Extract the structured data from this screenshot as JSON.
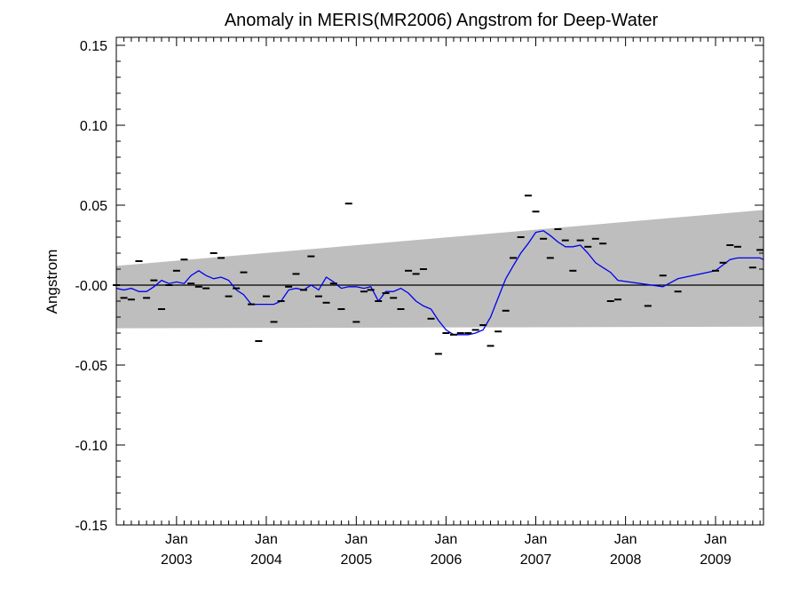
{
  "chart_data": {
    "type": "line",
    "title": "Anomaly in MERIS(MR2006) Angstrom for Deep-Water",
    "ylabel": "Angstrom",
    "xlabel": "",
    "ylim": [
      -0.15,
      0.155
    ],
    "xlim": [
      "2002-05-01",
      "2009-07-15"
    ],
    "y_ticks": [
      {
        "v": 0.15,
        "label": "0.15"
      },
      {
        "v": 0.1,
        "label": "0.10"
      },
      {
        "v": 0.05,
        "label": "0.05"
      },
      {
        "v": 0.0,
        "label": "-0.00"
      },
      {
        "v": -0.05,
        "label": "-0.05"
      },
      {
        "v": -0.1,
        "label": "-0.10"
      },
      {
        "v": -0.15,
        "label": "-0.15"
      }
    ],
    "x_ticks": [
      {
        "date": "2003-01-01",
        "month": "Jan",
        "year": "2003"
      },
      {
        "date": "2004-01-01",
        "month": "Jan",
        "year": "2004"
      },
      {
        "date": "2005-01-01",
        "month": "Jan",
        "year": "2005"
      },
      {
        "date": "2006-01-01",
        "month": "Jan",
        "year": "2006"
      },
      {
        "date": "2007-01-01",
        "month": "Jan",
        "year": "2007"
      },
      {
        "date": "2008-01-01",
        "month": "Jan",
        "year": "2008"
      },
      {
        "date": "2009-01-01",
        "month": "Jan",
        "year": "2009"
      }
    ],
    "band": {
      "color": "#bebebe",
      "start": {
        "date": "2002-05-01",
        "upper": 0.012,
        "lower": -0.027
      },
      "end": {
        "date": "2009-07-15",
        "upper": 0.047,
        "lower": -0.026
      }
    },
    "zero_line": {
      "y": 0.0,
      "color": "#000000"
    },
    "monthly_points": {
      "color": "#000000",
      "points": [
        [
          "2002-05-01",
          0.0
        ],
        [
          "2002-06-01",
          -0.008
        ],
        [
          "2002-07-01",
          -0.009
        ],
        [
          "2002-08-01",
          0.015
        ],
        [
          "2002-09-01",
          -0.008
        ],
        [
          "2002-10-01",
          0.003
        ],
        [
          "2002-11-01",
          -0.015
        ],
        [
          "2002-12-01",
          0.0
        ],
        [
          "2003-01-01",
          0.009
        ],
        [
          "2003-02-01",
          0.016
        ],
        [
          "2003-03-01",
          0.001
        ],
        [
          "2003-04-01",
          -0.001
        ],
        [
          "2003-05-01",
          -0.002
        ],
        [
          "2003-06-01",
          0.02
        ],
        [
          "2003-07-01",
          0.017
        ],
        [
          "2003-08-01",
          -0.007
        ],
        [
          "2003-09-01",
          -0.002
        ],
        [
          "2003-10-01",
          0.008
        ],
        [
          "2003-11-01",
          -0.012
        ],
        [
          "2003-12-01",
          -0.035
        ],
        [
          "2004-01-01",
          -0.007
        ],
        [
          "2004-02-01",
          -0.023
        ],
        [
          "2004-03-01",
          -0.01
        ],
        [
          "2004-04-01",
          -0.001
        ],
        [
          "2004-05-01",
          0.007
        ],
        [
          "2004-06-01",
          -0.003
        ],
        [
          "2004-07-01",
          0.018
        ],
        [
          "2004-08-01",
          -0.007
        ],
        [
          "2004-09-01",
          -0.011
        ],
        [
          "2004-10-01",
          0.001
        ],
        [
          "2004-11-01",
          -0.015
        ],
        [
          "2004-12-01",
          0.051
        ],
        [
          "2005-01-01",
          -0.023
        ],
        [
          "2005-02-01",
          -0.004
        ],
        [
          "2005-03-01",
          -0.003
        ],
        [
          "2005-04-01",
          -0.01
        ],
        [
          "2005-05-01",
          -0.005
        ],
        [
          "2005-06-01",
          -0.008
        ],
        [
          "2005-07-01",
          -0.015
        ],
        [
          "2005-08-01",
          0.009
        ],
        [
          "2005-09-01",
          0.007
        ],
        [
          "2005-10-01",
          0.01
        ],
        [
          "2005-11-01",
          -0.021
        ],
        [
          "2005-12-01",
          -0.043
        ],
        [
          "2006-01-01",
          -0.03
        ],
        [
          "2006-02-01",
          -0.031
        ],
        [
          "2006-03-01",
          -0.03
        ],
        [
          "2006-04-01",
          -0.03
        ],
        [
          "2006-05-01",
          -0.028
        ],
        [
          "2006-06-01",
          -0.025
        ],
        [
          "2006-07-01",
          -0.038
        ],
        [
          "2006-08-01",
          -0.029
        ],
        [
          "2006-09-01",
          -0.016
        ],
        [
          "2006-10-01",
          0.017
        ],
        [
          "2006-11-01",
          0.03
        ],
        [
          "2006-12-01",
          0.056
        ],
        [
          "2007-01-01",
          0.046
        ],
        [
          "2007-02-01",
          0.029
        ],
        [
          "2007-03-01",
          0.017
        ],
        [
          "2007-04-01",
          0.035
        ],
        [
          "2007-05-01",
          0.028
        ],
        [
          "2007-06-01",
          0.009
        ],
        [
          "2007-07-01",
          0.028
        ],
        [
          "2007-08-01",
          0.024
        ],
        [
          "2007-09-01",
          0.029
        ],
        [
          "2007-10-01",
          0.026
        ],
        [
          "2007-11-01",
          -0.01
        ],
        [
          "2007-12-01",
          -0.009
        ],
        [
          "2008-04-01",
          -0.013
        ],
        [
          "2008-06-01",
          0.006
        ],
        [
          "2008-08-01",
          -0.004
        ],
        [
          "2009-01-01",
          0.009
        ],
        [
          "2009-02-01",
          0.014
        ],
        [
          "2009-03-01",
          0.025
        ],
        [
          "2009-04-01",
          0.024
        ],
        [
          "2009-06-01",
          0.011
        ],
        [
          "2009-07-01",
          0.022
        ]
      ]
    },
    "smoothed_series": {
      "color": "#0000ee",
      "points": [
        [
          "2002-05-01",
          -0.002
        ],
        [
          "2002-06-01",
          -0.003
        ],
        [
          "2002-07-01",
          -0.002
        ],
        [
          "2002-08-01",
          -0.004
        ],
        [
          "2002-09-01",
          -0.004
        ],
        [
          "2002-10-01",
          -0.001
        ],
        [
          "2002-11-01",
          0.003
        ],
        [
          "2002-12-01",
          0.001
        ],
        [
          "2003-01-01",
          0.002
        ],
        [
          "2003-02-01",
          0.001
        ],
        [
          "2003-03-01",
          0.006
        ],
        [
          "2003-04-01",
          0.009
        ],
        [
          "2003-05-01",
          0.006
        ],
        [
          "2003-06-01",
          0.004
        ],
        [
          "2003-07-01",
          0.005
        ],
        [
          "2003-08-01",
          0.003
        ],
        [
          "2003-09-01",
          -0.003
        ],
        [
          "2003-10-01",
          -0.006
        ],
        [
          "2003-11-01",
          -0.012
        ],
        [
          "2003-12-01",
          -0.012
        ],
        [
          "2004-01-01",
          -0.012
        ],
        [
          "2004-02-01",
          -0.012
        ],
        [
          "2004-03-01",
          -0.01
        ],
        [
          "2004-04-01",
          -0.003
        ],
        [
          "2004-05-01",
          -0.002
        ],
        [
          "2004-06-01",
          -0.003
        ],
        [
          "2004-07-01",
          0.0
        ],
        [
          "2004-08-01",
          -0.003
        ],
        [
          "2004-09-01",
          0.005
        ],
        [
          "2004-10-01",
          0.002
        ],
        [
          "2004-11-01",
          -0.002
        ],
        [
          "2004-12-01",
          -0.001
        ],
        [
          "2005-01-01",
          -0.001
        ],
        [
          "2005-02-01",
          -0.002
        ],
        [
          "2005-03-01",
          -0.001
        ],
        [
          "2005-04-01",
          -0.01
        ],
        [
          "2005-05-01",
          -0.004
        ],
        [
          "2005-06-01",
          -0.004
        ],
        [
          "2005-07-01",
          -0.002
        ],
        [
          "2005-08-01",
          -0.005
        ],
        [
          "2005-09-01",
          -0.01
        ],
        [
          "2005-10-01",
          -0.013
        ],
        [
          "2005-11-01",
          -0.015
        ],
        [
          "2005-12-01",
          -0.022
        ],
        [
          "2006-01-01",
          -0.028
        ],
        [
          "2006-02-01",
          -0.031
        ],
        [
          "2006-03-01",
          -0.031
        ],
        [
          "2006-04-01",
          -0.031
        ],
        [
          "2006-05-01",
          -0.03
        ],
        [
          "2006-06-01",
          -0.028
        ],
        [
          "2006-07-01",
          -0.02
        ],
        [
          "2006-08-01",
          -0.008
        ],
        [
          "2006-09-01",
          0.004
        ],
        [
          "2006-10-01",
          0.012
        ],
        [
          "2006-11-01",
          0.02
        ],
        [
          "2006-12-01",
          0.026
        ],
        [
          "2007-01-01",
          0.033
        ],
        [
          "2007-02-01",
          0.034
        ],
        [
          "2007-03-01",
          0.031
        ],
        [
          "2007-04-01",
          0.027
        ],
        [
          "2007-05-01",
          0.024
        ],
        [
          "2007-06-01",
          0.024
        ],
        [
          "2007-07-01",
          0.025
        ],
        [
          "2007-08-01",
          0.02
        ],
        [
          "2007-09-01",
          0.014
        ],
        [
          "2007-10-01",
          0.011
        ],
        [
          "2007-11-01",
          0.008
        ],
        [
          "2007-12-01",
          0.003
        ],
        [
          "2008-06-01",
          -0.001
        ],
        [
          "2008-08-01",
          0.004
        ],
        [
          "2009-01-01",
          0.009
        ],
        [
          "2009-03-01",
          0.016
        ],
        [
          "2009-04-01",
          0.017
        ],
        [
          "2009-07-01",
          0.017
        ],
        [
          "2009-07-15",
          0.016
        ]
      ]
    }
  }
}
